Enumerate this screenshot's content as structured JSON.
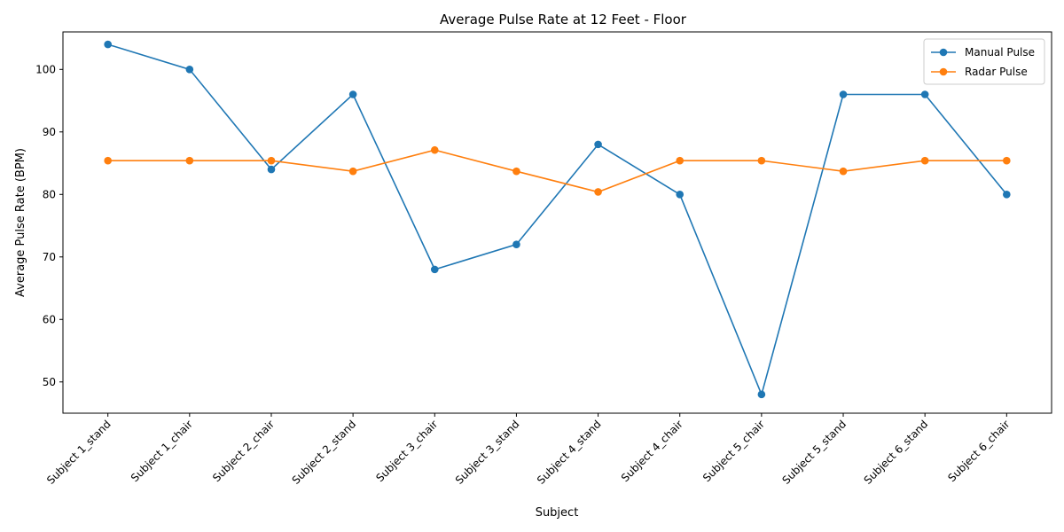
{
  "chart_data": {
    "type": "line",
    "title": "Average Pulse Rate at 12 Feet - Floor",
    "xlabel": "Subject",
    "ylabel": "Average Pulse Rate (BPM)",
    "categories": [
      "Subject 1_stand",
      "Subject 1_chair",
      "Subject 2_chair",
      "Subject 2_stand",
      "Subject 3_chair",
      "Subject 3_stand",
      "Subject 4_stand",
      "Subject 4_chair",
      "Subject 5_chair",
      "Subject 5_stand",
      "Subject 6_stand",
      "Subject 6_chair"
    ],
    "series": [
      {
        "name": "Manual Pulse",
        "color": "#1f77b4",
        "values": [
          104,
          100,
          84,
          96,
          68,
          72,
          88,
          80,
          48,
          96,
          96,
          80
        ]
      },
      {
        "name": "Radar Pulse",
        "color": "#ff7f0e",
        "values": [
          85.4,
          85.4,
          85.4,
          83.7,
          87.1,
          83.7,
          80.4,
          85.4,
          85.4,
          83.7,
          85.4,
          85.4
        ]
      }
    ],
    "ylim": [
      45,
      106
    ],
    "yticks": [
      50,
      60,
      70,
      80,
      90,
      100
    ],
    "grid": false,
    "legend_position": "top-right"
  }
}
